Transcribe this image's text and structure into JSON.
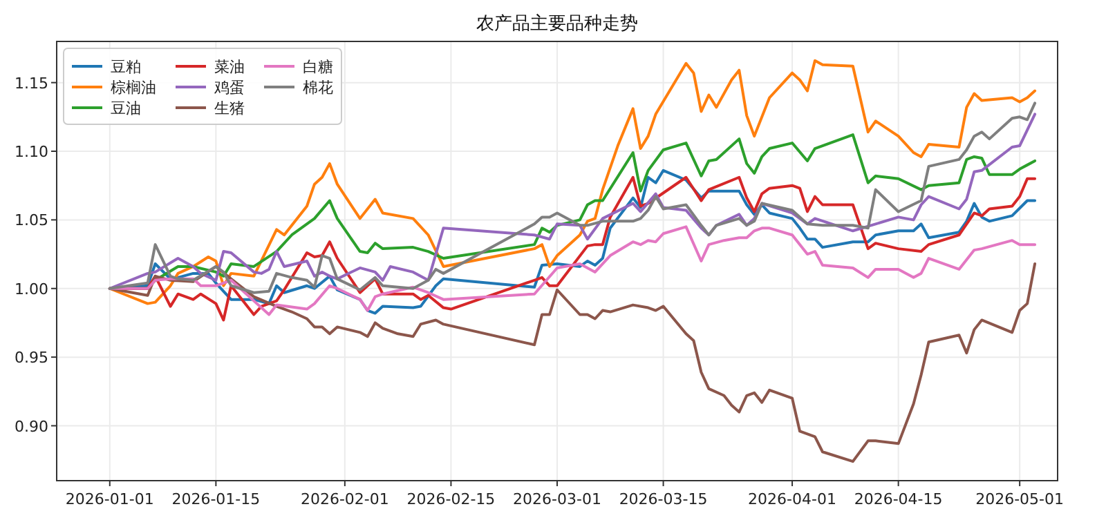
{
  "chart_data": {
    "type": "line",
    "title": "农产品主要品种走势",
    "xlim": [
      "2025-12-25",
      "2026-05-06"
    ],
    "ylim": [
      0.86,
      1.18
    ],
    "xticks": [
      "2026-01-01",
      "2026-01-15",
      "2026-02-01",
      "2026-02-15",
      "2026-03-01",
      "2026-03-15",
      "2026-04-01",
      "2026-04-15",
      "2026-05-01"
    ],
    "yticks": [
      {
        "value": 0.9,
        "label": "0.90"
      },
      0.95,
      {
        "value": 1.0,
        "label": "1.00"
      },
      1.05,
      {
        "value": 1.1,
        "label": "1.10"
      },
      1.15
    ],
    "grid": true,
    "legend": "top left",
    "series": [
      {
        "name": "豆粕",
        "color": "#1f77b4",
        "x": [
          "2026-01-01",
          "2026-01-06",
          "2026-01-07",
          "2026-01-09",
          "2026-01-10",
          "2026-01-12",
          "2026-01-14",
          "2026-01-15",
          "2026-01-17",
          "2026-01-20",
          "2026-01-22",
          "2026-01-23",
          "2026-01-24",
          "2026-01-27",
          "2026-01-28",
          "2026-01-30",
          "2026-01-31",
          "2026-02-03",
          "2026-02-04",
          "2026-02-05",
          "2026-02-06",
          "2026-02-10",
          "2026-02-11",
          "2026-02-13",
          "2026-02-14",
          "2026-02-26",
          "2026-02-27",
          "2026-03-01",
          "2026-03-04",
          "2026-03-05",
          "2026-03-06",
          "2026-03-07",
          "2026-03-08",
          "2026-03-11",
          "2026-03-12",
          "2026-03-13",
          "2026-03-14",
          "2026-03-15",
          "2026-03-18",
          "2026-03-20",
          "2026-03-21",
          "2026-03-25",
          "2026-03-26",
          "2026-03-27",
          "2026-03-28",
          "2026-03-29",
          "2026-04-01",
          "2026-04-02",
          "2026-04-03",
          "2026-04-04",
          "2026-04-05",
          "2026-04-09",
          "2026-04-11",
          "2026-04-12",
          "2026-04-15",
          "2026-04-17",
          "2026-04-18",
          "2026-04-19",
          "2026-04-23",
          "2026-04-24",
          "2026-04-25",
          "2026-04-26",
          "2026-04-27",
          "2026-04-30",
          "2026-05-02",
          "2026-05-03"
        ],
        "values": [
          1.0,
          1.002,
          1.018,
          1.007,
          1.008,
          1.011,
          1.011,
          1.004,
          0.992,
          0.992,
          0.989,
          1.002,
          0.997,
          1.002,
          1.0,
          1.009,
          0.999,
          0.992,
          0.984,
          0.982,
          0.987,
          0.986,
          0.987,
          1.002,
          1.007,
          1.001,
          1.017,
          1.018,
          1.016,
          1.02,
          1.017,
          1.022,
          1.044,
          1.066,
          1.059,
          1.081,
          1.077,
          1.086,
          1.079,
          1.066,
          1.071,
          1.071,
          1.061,
          1.054,
          1.061,
          1.055,
          1.051,
          1.044,
          1.036,
          1.036,
          1.03,
          1.034,
          1.034,
          1.039,
          1.042,
          1.042,
          1.047,
          1.037,
          1.041,
          1.049,
          1.062,
          1.052,
          1.049,
          1.053,
          1.064,
          1.064
        ]
      },
      {
        "name": "棕榈油",
        "color": "#ff7f0e",
        "x": [
          "2026-01-01",
          "2026-01-06",
          "2026-01-07",
          "2026-01-09",
          "2026-01-10",
          "2026-01-12",
          "2026-01-14",
          "2026-01-15",
          "2026-01-16",
          "2026-01-17",
          "2026-01-20",
          "2026-01-23",
          "2026-01-24",
          "2026-01-27",
          "2026-01-28",
          "2026-01-29",
          "2026-01-30",
          "2026-01-31",
          "2026-02-03",
          "2026-02-05",
          "2026-02-06",
          "2026-02-10",
          "2026-02-12",
          "2026-02-14",
          "2026-02-26",
          "2026-02-27",
          "2026-02-28",
          "2026-03-01",
          "2026-03-04",
          "2026-03-05",
          "2026-03-06",
          "2026-03-07",
          "2026-03-09",
          "2026-03-11",
          "2026-03-12",
          "2026-03-13",
          "2026-03-14",
          "2026-03-18",
          "2026-03-19",
          "2026-03-20",
          "2026-03-21",
          "2026-03-22",
          "2026-03-24",
          "2026-03-25",
          "2026-03-26",
          "2026-03-27",
          "2026-03-29",
          "2026-04-01",
          "2026-04-02",
          "2026-04-03",
          "2026-04-04",
          "2026-04-05",
          "2026-04-09",
          "2026-04-11",
          "2026-04-12",
          "2026-04-15",
          "2026-04-17",
          "2026-04-18",
          "2026-04-19",
          "2026-04-23",
          "2026-04-24",
          "2026-04-25",
          "2026-04-26",
          "2026-04-30",
          "2026-05-01",
          "2026-05-02",
          "2026-05-03"
        ],
        "values": [
          1.0,
          0.989,
          0.99,
          1.002,
          1.011,
          1.016,
          1.023,
          1.02,
          1.002,
          1.011,
          1.009,
          1.043,
          1.039,
          1.06,
          1.076,
          1.081,
          1.091,
          1.076,
          1.051,
          1.065,
          1.055,
          1.051,
          1.039,
          1.016,
          1.029,
          1.032,
          1.016,
          1.024,
          1.039,
          1.049,
          1.051,
          1.072,
          1.104,
          1.131,
          1.102,
          1.111,
          1.127,
          1.164,
          1.157,
          1.129,
          1.141,
          1.132,
          1.152,
          1.159,
          1.126,
          1.111,
          1.139,
          1.157,
          1.152,
          1.144,
          1.166,
          1.163,
          1.162,
          1.114,
          1.122,
          1.111,
          1.099,
          1.096,
          1.105,
          1.103,
          1.132,
          1.142,
          1.137,
          1.139,
          1.136,
          1.139,
          1.144
        ]
      },
      {
        "name": "豆油",
        "color": "#2ca02c",
        "x": [
          "2026-01-01",
          "2026-01-06",
          "2026-01-07",
          "2026-01-10",
          "2026-01-12",
          "2026-01-15",
          "2026-01-16",
          "2026-01-17",
          "2026-01-20",
          "2026-01-23",
          "2026-01-25",
          "2026-01-28",
          "2026-01-30",
          "2026-01-31",
          "2026-02-03",
          "2026-02-04",
          "2026-02-05",
          "2026-02-06",
          "2026-02-10",
          "2026-02-12",
          "2026-02-14",
          "2026-02-26",
          "2026-02-27",
          "2026-02-28",
          "2026-03-01",
          "2026-03-04",
          "2026-03-05",
          "2026-03-06",
          "2026-03-07",
          "2026-03-11",
          "2026-03-12",
          "2026-03-13",
          "2026-03-15",
          "2026-03-18",
          "2026-03-20",
          "2026-03-21",
          "2026-03-22",
          "2026-03-25",
          "2026-03-26",
          "2026-03-27",
          "2026-03-28",
          "2026-03-29",
          "2026-04-01",
          "2026-04-03",
          "2026-04-04",
          "2026-04-09",
          "2026-04-11",
          "2026-04-12",
          "2026-04-15",
          "2026-04-18",
          "2026-04-19",
          "2026-04-23",
          "2026-04-24",
          "2026-04-25",
          "2026-04-26",
          "2026-04-27",
          "2026-04-30",
          "2026-05-01",
          "2026-05-02",
          "2026-05-03"
        ],
        "values": [
          1.0,
          1.0,
          1.006,
          1.016,
          1.016,
          1.012,
          1.009,
          1.018,
          1.016,
          1.027,
          1.039,
          1.051,
          1.064,
          1.051,
          1.027,
          1.026,
          1.033,
          1.029,
          1.03,
          1.027,
          1.022,
          1.032,
          1.044,
          1.041,
          1.046,
          1.05,
          1.061,
          1.064,
          1.064,
          1.099,
          1.071,
          1.086,
          1.101,
          1.106,
          1.082,
          1.093,
          1.094,
          1.109,
          1.091,
          1.084,
          1.096,
          1.102,
          1.106,
          1.093,
          1.102,
          1.112,
          1.077,
          1.082,
          1.08,
          1.072,
          1.075,
          1.077,
          1.094,
          1.096,
          1.095,
          1.083,
          1.083,
          1.087,
          1.09,
          1.093
        ]
      },
      {
        "name": "菜油",
        "color": "#d62728",
        "x": [
          "2026-01-01",
          "2026-01-06",
          "2026-01-07",
          "2026-01-09",
          "2026-01-10",
          "2026-01-12",
          "2026-01-13",
          "2026-01-15",
          "2026-01-16",
          "2026-01-17",
          "2026-01-20",
          "2026-01-21",
          "2026-01-23",
          "2026-01-24",
          "2026-01-27",
          "2026-01-28",
          "2026-01-29",
          "2026-01-30",
          "2026-01-31",
          "2026-02-03",
          "2026-02-05",
          "2026-02-06",
          "2026-02-10",
          "2026-02-11",
          "2026-02-12",
          "2026-02-14",
          "2026-02-15",
          "2026-02-26",
          "2026-02-27",
          "2026-02-28",
          "2026-03-01",
          "2026-03-05",
          "2026-03-06",
          "2026-03-07",
          "2026-03-08",
          "2026-03-11",
          "2026-03-12",
          "2026-03-13",
          "2026-03-18",
          "2026-03-20",
          "2026-03-21",
          "2026-03-25",
          "2026-03-26",
          "2026-03-27",
          "2026-03-28",
          "2026-03-29",
          "2026-04-01",
          "2026-04-02",
          "2026-04-03",
          "2026-04-04",
          "2026-04-05",
          "2026-04-09",
          "2026-04-11",
          "2026-04-12",
          "2026-04-15",
          "2026-04-18",
          "2026-04-19",
          "2026-04-23",
          "2026-04-25",
          "2026-04-26",
          "2026-04-27",
          "2026-04-30",
          "2026-05-01",
          "2026-05-02",
          "2026-05-03"
        ],
        "values": [
          1.0,
          1.0,
          1.009,
          0.987,
          0.996,
          0.992,
          0.996,
          0.989,
          0.977,
          1.002,
          0.981,
          0.987,
          0.991,
          0.999,
          1.026,
          1.023,
          1.024,
          1.034,
          1.022,
          0.997,
          1.007,
          0.996,
          0.996,
          0.992,
          0.995,
          0.986,
          0.985,
          1.006,
          1.008,
          1.002,
          1.002,
          1.031,
          1.032,
          1.032,
          1.052,
          1.081,
          1.06,
          1.062,
          1.081,
          1.064,
          1.072,
          1.081,
          1.066,
          1.056,
          1.069,
          1.073,
          1.075,
          1.073,
          1.056,
          1.067,
          1.061,
          1.061,
          1.029,
          1.033,
          1.029,
          1.027,
          1.032,
          1.039,
          1.055,
          1.053,
          1.058,
          1.06,
          1.067,
          1.08,
          1.08
        ]
      },
      {
        "name": "鸡蛋",
        "color": "#9467bd",
        "x": [
          "2026-01-01",
          "2026-01-06",
          "2026-01-07",
          "2026-01-10",
          "2026-01-12",
          "2026-01-13",
          "2026-01-15",
          "2026-01-16",
          "2026-01-17",
          "2026-01-20",
          "2026-01-21",
          "2026-01-22",
          "2026-01-23",
          "2026-01-24",
          "2026-01-27",
          "2026-01-28",
          "2026-01-29",
          "2026-01-30",
          "2026-01-31",
          "2026-02-03",
          "2026-02-05",
          "2026-02-06",
          "2026-02-07",
          "2026-02-10",
          "2026-02-12",
          "2026-02-14",
          "2026-02-26",
          "2026-02-28",
          "2026-03-01",
          "2026-03-04",
          "2026-03-05",
          "2026-03-07",
          "2026-03-11",
          "2026-03-12",
          "2026-03-14",
          "2026-03-15",
          "2026-03-18",
          "2026-03-20",
          "2026-03-21",
          "2026-03-22",
          "2026-03-25",
          "2026-03-26",
          "2026-03-27",
          "2026-03-28",
          "2026-04-01",
          "2026-04-03",
          "2026-04-04",
          "2026-04-09",
          "2026-04-12",
          "2026-04-15",
          "2026-04-17",
          "2026-04-18",
          "2026-04-19",
          "2026-04-23",
          "2026-04-24",
          "2026-04-25",
          "2026-04-26",
          "2026-04-30",
          "2026-05-01",
          "2026-05-03"
        ],
        "values": [
          1.0,
          1.011,
          1.012,
          1.022,
          1.016,
          1.011,
          1.006,
          1.027,
          1.026,
          1.012,
          1.011,
          1.014,
          1.027,
          1.016,
          1.02,
          1.009,
          1.012,
          1.009,
          1.007,
          1.015,
          1.012,
          1.006,
          1.016,
          1.012,
          1.006,
          1.044,
          1.039,
          1.036,
          1.047,
          1.046,
          1.036,
          1.051,
          1.062,
          1.056,
          1.069,
          1.059,
          1.057,
          1.044,
          1.039,
          1.046,
          1.054,
          1.046,
          1.051,
          1.062,
          1.055,
          1.047,
          1.051,
          1.042,
          1.047,
          1.052,
          1.05,
          1.061,
          1.067,
          1.058,
          1.065,
          1.085,
          1.086,
          1.103,
          1.104,
          1.127
        ]
      },
      {
        "name": "生猪",
        "color": "#8c564b",
        "x": [
          "2026-01-01",
          "2026-01-06",
          "2026-01-07",
          "2026-01-09",
          "2026-01-12",
          "2026-01-15",
          "2026-01-17",
          "2026-01-20",
          "2026-01-23",
          "2026-01-25",
          "2026-01-27",
          "2026-01-28",
          "2026-01-29",
          "2026-01-30",
          "2026-01-31",
          "2026-02-03",
          "2026-02-04",
          "2026-02-05",
          "2026-02-06",
          "2026-02-08",
          "2026-02-10",
          "2026-02-11",
          "2026-02-13",
          "2026-02-14",
          "2026-02-26",
          "2026-02-27",
          "2026-02-28",
          "2026-03-01",
          "2026-03-04",
          "2026-03-05",
          "2026-03-06",
          "2026-03-07",
          "2026-03-08",
          "2026-03-11",
          "2026-03-13",
          "2026-03-14",
          "2026-03-15",
          "2026-03-18",
          "2026-03-19",
          "2026-03-20",
          "2026-03-21",
          "2026-03-23",
          "2026-03-24",
          "2026-03-25",
          "2026-03-26",
          "2026-03-27",
          "2026-03-28",
          "2026-03-29",
          "2026-04-01",
          "2026-04-02",
          "2026-04-04",
          "2026-04-05",
          "2026-04-09",
          "2026-04-11",
          "2026-04-12",
          "2026-04-15",
          "2026-04-17",
          "2026-04-18",
          "2026-04-19",
          "2026-04-23",
          "2026-04-24",
          "2026-04-25",
          "2026-04-26",
          "2026-04-30",
          "2026-05-01",
          "2026-05-02",
          "2026-05-03"
        ],
        "values": [
          1.0,
          0.995,
          1.009,
          1.006,
          1.005,
          1.016,
          1.007,
          0.994,
          0.987,
          0.983,
          0.978,
          0.972,
          0.972,
          0.967,
          0.972,
          0.968,
          0.965,
          0.975,
          0.971,
          0.967,
          0.965,
          0.974,
          0.977,
          0.974,
          0.959,
          0.981,
          0.981,
          0.999,
          0.981,
          0.981,
          0.978,
          0.984,
          0.983,
          0.988,
          0.986,
          0.984,
          0.987,
          0.967,
          0.962,
          0.939,
          0.927,
          0.922,
          0.915,
          0.91,
          0.922,
          0.924,
          0.917,
          0.926,
          0.92,
          0.896,
          0.892,
          0.881,
          0.874,
          0.889,
          0.889,
          0.887,
          0.916,
          0.937,
          0.961,
          0.966,
          0.953,
          0.97,
          0.977,
          0.968,
          0.984,
          0.989,
          1.018
        ]
      },
      {
        "name": "白糖",
        "color": "#e377c2",
        "x": [
          "2026-01-01",
          "2026-01-06",
          "2026-01-07",
          "2026-01-09",
          "2026-01-12",
          "2026-01-13",
          "2026-01-15",
          "2026-01-17",
          "2026-01-20",
          "2026-01-22",
          "2026-01-23",
          "2026-01-27",
          "2026-01-28",
          "2026-01-30",
          "2026-01-31",
          "2026-02-03",
          "2026-02-04",
          "2026-02-05",
          "2026-02-06",
          "2026-02-10",
          "2026-02-12",
          "2026-02-14",
          "2026-02-26",
          "2026-03-01",
          "2026-03-04",
          "2026-03-06",
          "2026-03-08",
          "2026-03-11",
          "2026-03-12",
          "2026-03-13",
          "2026-03-14",
          "2026-03-15",
          "2026-03-18",
          "2026-03-20",
          "2026-03-21",
          "2026-03-23",
          "2026-03-25",
          "2026-03-26",
          "2026-03-27",
          "2026-03-28",
          "2026-03-29",
          "2026-04-01",
          "2026-04-03",
          "2026-04-04",
          "2026-04-05",
          "2026-04-09",
          "2026-04-11",
          "2026-04-12",
          "2026-04-15",
          "2026-04-17",
          "2026-04-18",
          "2026-04-19",
          "2026-04-23",
          "2026-04-25",
          "2026-04-26",
          "2026-04-30",
          "2026-05-01",
          "2026-05-03"
        ],
        "values": [
          1.0,
          1.0,
          1.006,
          1.007,
          1.007,
          1.002,
          1.002,
          1.006,
          0.991,
          0.981,
          0.988,
          0.985,
          0.989,
          1.002,
          1.0,
          0.992,
          0.984,
          0.994,
          0.996,
          1.001,
          0.997,
          0.992,
          0.996,
          1.015,
          1.018,
          1.012,
          1.024,
          1.034,
          1.032,
          1.035,
          1.034,
          1.04,
          1.045,
          1.02,
          1.032,
          1.035,
          1.037,
          1.037,
          1.042,
          1.044,
          1.044,
          1.039,
          1.025,
          1.027,
          1.017,
          1.015,
          1.008,
          1.014,
          1.014,
          1.008,
          1.011,
          1.022,
          1.014,
          1.028,
          1.029,
          1.035,
          1.032,
          1.032
        ]
      },
      {
        "name": "棉花",
        "color": "#7f7f7f",
        "x": [
          "2026-01-01",
          "2026-01-06",
          "2026-01-07",
          "2026-01-09",
          "2026-01-10",
          "2026-01-12",
          "2026-01-15",
          "2026-01-16",
          "2026-01-17",
          "2026-01-20",
          "2026-01-22",
          "2026-01-23",
          "2026-01-25",
          "2026-01-27",
          "2026-01-28",
          "2026-01-29",
          "2026-01-30",
          "2026-01-31",
          "2026-02-03",
          "2026-02-05",
          "2026-02-06",
          "2026-02-10",
          "2026-02-12",
          "2026-02-13",
          "2026-02-14",
          "2026-02-26",
          "2026-02-27",
          "2026-02-28",
          "2026-03-01",
          "2026-03-04",
          "2026-03-05",
          "2026-03-07",
          "2026-03-11",
          "2026-03-12",
          "2026-03-13",
          "2026-03-14",
          "2026-03-15",
          "2026-03-18",
          "2026-03-20",
          "2026-03-21",
          "2026-03-22",
          "2026-03-25",
          "2026-03-26",
          "2026-03-27",
          "2026-03-28",
          "2026-04-01",
          "2026-04-03",
          "2026-04-05",
          "2026-04-09",
          "2026-04-11",
          "2026-04-12",
          "2026-04-15",
          "2026-04-18",
          "2026-04-19",
          "2026-04-23",
          "2026-04-24",
          "2026-04-25",
          "2026-04-26",
          "2026-04-27",
          "2026-04-30",
          "2026-05-01",
          "2026-05-02",
          "2026-05-03"
        ],
        "values": [
          1.0,
          1.004,
          1.032,
          1.009,
          1.007,
          1.006,
          1.016,
          1.012,
          1.002,
          0.997,
          0.998,
          1.011,
          1.008,
          1.006,
          1.001,
          1.024,
          1.022,
          1.007,
          0.999,
          1.008,
          1.002,
          1.0,
          1.006,
          1.014,
          1.011,
          1.047,
          1.052,
          1.052,
          1.055,
          1.046,
          1.046,
          1.049,
          1.049,
          1.051,
          1.057,
          1.067,
          1.058,
          1.061,
          1.046,
          1.039,
          1.046,
          1.051,
          1.046,
          1.049,
          1.062,
          1.057,
          1.047,
          1.046,
          1.046,
          1.044,
          1.072,
          1.056,
          1.064,
          1.089,
          1.094,
          1.101,
          1.111,
          1.114,
          1.109,
          1.124,
          1.125,
          1.123,
          1.135
        ]
      }
    ]
  }
}
